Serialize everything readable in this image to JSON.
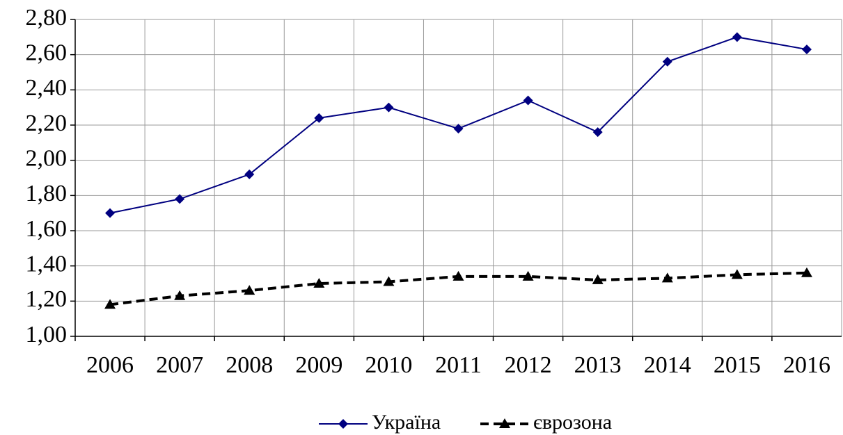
{
  "chart_data": {
    "type": "line",
    "categories": [
      "2006",
      "2007",
      "2008",
      "2009",
      "2010",
      "2011",
      "2012",
      "2013",
      "2014",
      "2015",
      "2016"
    ],
    "series": [
      {
        "name": "Україна",
        "color": "#000080",
        "marker": "diamond",
        "dashed": false,
        "values": [
          1.7,
          1.78,
          1.92,
          2.24,
          2.3,
          2.18,
          2.34,
          2.16,
          2.56,
          2.7,
          2.63
        ]
      },
      {
        "name": "єврозона",
        "color": "#000000",
        "marker": "triangle",
        "dashed": true,
        "values": [
          1.18,
          1.23,
          1.26,
          1.3,
          1.31,
          1.34,
          1.34,
          1.32,
          1.33,
          1.35,
          1.36
        ]
      }
    ],
    "ylim": [
      1.0,
      2.8
    ],
    "yticks": [
      {
        "value": 1.0,
        "label": "1,00"
      },
      {
        "value": 1.2,
        "label": "1,20"
      },
      {
        "value": 1.4,
        "label": "1,40"
      },
      {
        "value": 1.6,
        "label": "1,60"
      },
      {
        "value": 1.8,
        "label": "1,80"
      },
      {
        "value": 2.0,
        "label": "2,00"
      },
      {
        "value": 2.2,
        "label": "2,20"
      },
      {
        "value": 2.4,
        "label": "2,40"
      },
      {
        "value": 2.6,
        "label": "2,60"
      },
      {
        "value": 2.8,
        "label": "2,80"
      }
    ],
    "grid": true,
    "legend": "bottom"
  }
}
